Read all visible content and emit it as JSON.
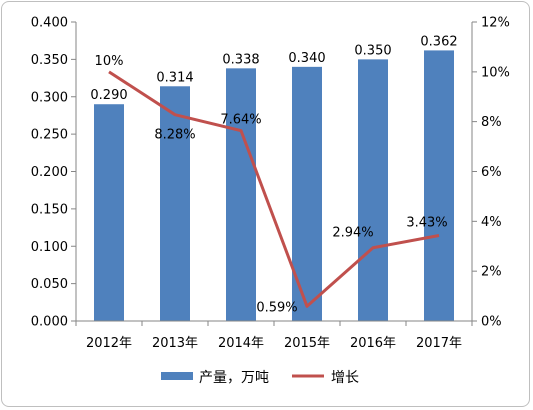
{
  "chart_data": {
    "type": "bar+line",
    "categories": [
      "2012年",
      "2013年",
      "2014年",
      "2015年",
      "2016年",
      "2017年"
    ],
    "series": [
      {
        "name": "产量，万吨",
        "type": "bar",
        "axis": "left",
        "color": "#4f81bd",
        "values": [
          0.29,
          0.314,
          0.338,
          0.34,
          0.35,
          0.362
        ],
        "labels": [
          "0.290",
          "0.314",
          "0.338",
          "0.340",
          "0.350",
          "0.362"
        ]
      },
      {
        "name": "增长",
        "type": "line",
        "axis": "right",
        "color": "#c0504d",
        "values": [
          10,
          8.28,
          7.64,
          0.59,
          2.94,
          3.43
        ],
        "labels": [
          "10%",
          "8.28%",
          "7.64%",
          "0.59%",
          "2.94%",
          "3.43%"
        ]
      }
    ],
    "y_left": {
      "range": [
        0,
        0.4
      ],
      "ticks": [
        "0.000",
        "0.050",
        "0.100",
        "0.150",
        "0.200",
        "0.250",
        "0.300",
        "0.350",
        "0.400"
      ]
    },
    "y_right": {
      "range": [
        0,
        12
      ],
      "ticks": [
        "0%",
        "2%",
        "4%",
        "6%",
        "8%",
        "10%",
        "12%"
      ]
    },
    "grid": false,
    "legend_position": "bottom"
  }
}
